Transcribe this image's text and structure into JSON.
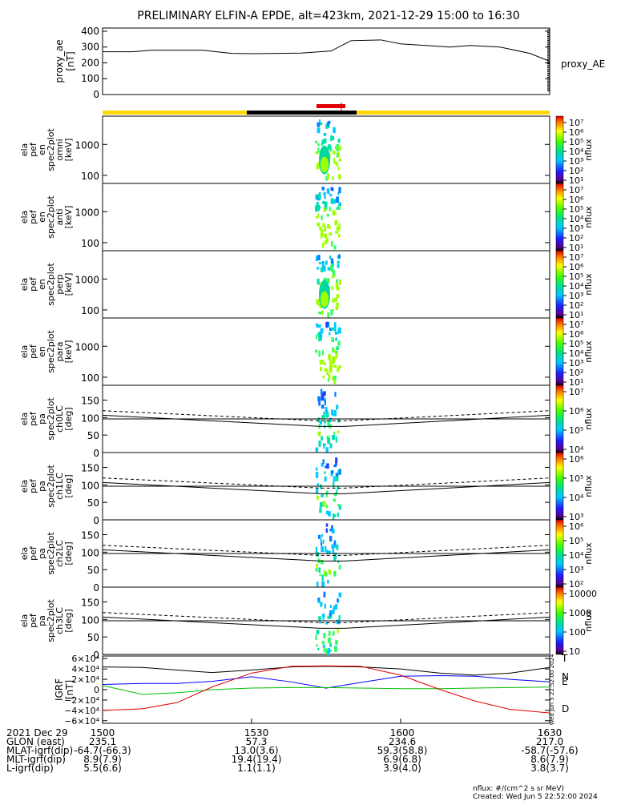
{
  "title": "PRELIMINARY ELFIN-A EPDE, alt=423km, 2021-12-29 15:00 to 16:30",
  "colors": {
    "phase_bar_yellow": "#ffd800",
    "phase_bar_black": "#000000",
    "marker_red": "#e00000",
    "bx_blue": "#0000ff",
    "by_green": "#00c000",
    "bz_red": "#e00000"
  },
  "x_axis": {
    "ticks": [
      1500,
      1530,
      1600,
      1630
    ],
    "tick_labels": [
      "1500",
      "1530",
      "1600",
      "1630"
    ],
    "minutes_range": [
      0,
      90
    ]
  },
  "chart_data": [
    {
      "type": "line",
      "id": "proxy_ae",
      "ylabel": "proxy_ae\n[nT]",
      "legend": "proxy_AE",
      "ylim": [
        0,
        420
      ],
      "yticks": [
        0,
        100,
        200,
        300,
        400
      ],
      "x_minutes": [
        0,
        6,
        10,
        20,
        26,
        30,
        40,
        46,
        50,
        56,
        60,
        70,
        74,
        80,
        86,
        90
      ],
      "values": [
        270,
        270,
        280,
        280,
        260,
        258,
        262,
        275,
        340,
        345,
        320,
        300,
        310,
        300,
        260,
        210
      ]
    },
    {
      "type": "heatmap",
      "id": "en_omni",
      "ylabel": "ela\npef\nen\nspec2plot\nomni\n[keV]",
      "yticks": [
        "100",
        "1000"
      ],
      "cb_max": "10⁷",
      "cb_ticks": [
        "10⁷",
        "10⁶",
        "10⁵",
        "10⁴",
        "10³",
        "10²",
        "10¹"
      ],
      "cb_label": "nflux"
    },
    {
      "type": "heatmap",
      "id": "en_anti",
      "ylabel": "ela\npef\nen\nspec2plot\nanti\n[keV]",
      "yticks": [
        "100",
        "1000"
      ],
      "cb_ticks": [
        "10⁷",
        "10⁶",
        "10⁵",
        "10⁴",
        "10³",
        "10²",
        "10¹"
      ],
      "cb_label": "nflux"
    },
    {
      "type": "heatmap",
      "id": "en_perp",
      "ylabel": "ela\npef\nen\nspec2plot\nperp\n[keV]",
      "yticks": [
        "100",
        "1000"
      ],
      "cb_ticks": [
        "10⁷",
        "10⁶",
        "10⁵",
        "10⁴",
        "10³",
        "10²",
        "10¹"
      ],
      "cb_label": "nflux"
    },
    {
      "type": "heatmap",
      "id": "en_para",
      "ylabel": "ela\npef\nen\nspec2plot\npara\n[keV]",
      "yticks": [
        "100",
        "1000"
      ],
      "cb_ticks": [
        "10⁷",
        "10⁶",
        "10⁵",
        "10⁴",
        "10³",
        "10²",
        "10¹"
      ],
      "cb_label": "nflux"
    },
    {
      "type": "heatmap",
      "id": "pa_ch0",
      "ylabel": "ela\npef\npa\nspec2plot\nch0LC\n[deg]",
      "yticks": [
        "0",
        "50",
        "100",
        "150"
      ],
      "cb_ticks": [
        "10⁷",
        "10⁶",
        "10⁵",
        "10⁴"
      ],
      "cb_label": "nflux"
    },
    {
      "type": "heatmap",
      "id": "pa_ch1",
      "ylabel": "ela\npef\npa\nspec2plot\nch1LC\n[deg]",
      "yticks": [
        "0",
        "50",
        "100",
        "150"
      ],
      "cb_ticks": [
        "10⁶",
        "10⁵",
        "10⁴",
        "10³"
      ],
      "cb_label": "nflux"
    },
    {
      "type": "heatmap",
      "id": "pa_ch2",
      "ylabel": "ela\npef\npa\nspec2plot\nch2LC\n[deg]",
      "yticks": [
        "0",
        "50",
        "100",
        "150"
      ],
      "cb_ticks": [
        "10⁶",
        "10⁵",
        "10⁴",
        "10³",
        "10²"
      ],
      "cb_label": "nflux"
    },
    {
      "type": "heatmap",
      "id": "pa_ch3",
      "ylabel": "ela\npef\npa\nspec2plot\nch3LC\n[deg]",
      "yticks": [
        "0",
        "50",
        "100",
        "150"
      ],
      "cb_ticks": [
        "10000",
        "1000",
        "100",
        "10"
      ],
      "cb_label": "nflux"
    },
    {
      "type": "line",
      "id": "igrf",
      "ylabel": "IGRF\n[nT]",
      "yticks": [
        "6×10⁴",
        "4×10⁴",
        "2×10⁴",
        "0",
        "−2×10⁴",
        "−4×10⁴",
        "−6×10⁴"
      ],
      "ylim": [
        -65000,
        65000
      ],
      "series_labels": [
        "T",
        "N",
        "E",
        "D"
      ],
      "x_minutes": [
        0,
        8,
        15,
        22,
        30,
        38,
        45,
        52,
        60,
        68,
        75,
        82,
        90
      ],
      "series": [
        {
          "name": "T",
          "values": [
            44000,
            43000,
            38000,
            33000,
            38000,
            44000,
            45000,
            44000,
            40000,
            32000,
            28000,
            32000,
            43000
          ]
        },
        {
          "name": "N",
          "values": [
            10000,
            12000,
            12000,
            16000,
            25000,
            15000,
            3000,
            14000,
            26000,
            27000,
            26000,
            20000,
            15000
          ]
        },
        {
          "name": "E",
          "values": [
            8000,
            -9000,
            -6000,
            0,
            3000,
            4000,
            4000,
            3000,
            2000,
            2000,
            3000,
            4000,
            5000
          ]
        },
        {
          "name": "D",
          "values": [
            -40000,
            -37000,
            -25000,
            5000,
            32000,
            45000,
            46000,
            45000,
            28000,
            0,
            -22000,
            -38000,
            -45000
          ]
        }
      ],
      "side_text": "Wed Jun  5 22:52:00 2024"
    }
  ],
  "ephemeris": {
    "rows": [
      {
        "label": "2021 Dec 29",
        "values": [
          "1500",
          "1530",
          "1600",
          "1630"
        ]
      },
      {
        "label": "GLON (east)",
        "values": [
          "235.1",
          "57.3",
          "234.6",
          "217.0"
        ]
      },
      {
        "label": "MLAT-igrf(dip)",
        "values": [
          "-64.7(-66.3)",
          "13.0(3.6)",
          "59.3(58.8)",
          "-58.7(-57.6)"
        ]
      },
      {
        "label": "MLT-igrf(dip)",
        "values": [
          "8.9(7.9)",
          "19.4(19.4)",
          "6.9(6.8)",
          "8.6(7.9)"
        ]
      },
      {
        "label": "L-igrf(dip)",
        "values": [
          "5.5(6.6)",
          "1.1(1.1)",
          "3.9(4.0)",
          "3.8(3.7)"
        ]
      }
    ]
  },
  "footer": {
    "units": "nflux: #/(cm^2 s sr MeV)",
    "created": "Created: Wed Jun  5 22:52:00 2024"
  }
}
